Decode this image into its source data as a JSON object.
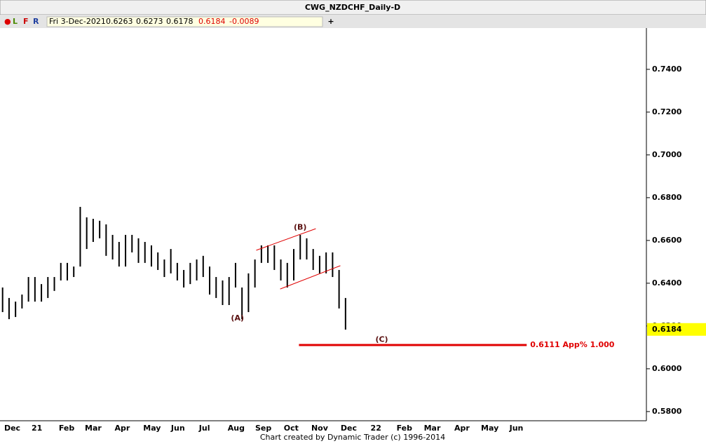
{
  "header": {
    "title": "CWG_NZDCHF_Daily-D",
    "dot": "●",
    "buttons": [
      "L",
      "F",
      "R"
    ],
    "info": {
      "date": "Fri 3-Dec-2021",
      "open": 0.6263,
      "high": 0.6273,
      "low": 0.6178,
      "close": 0.6184,
      "change": -0.0089
    },
    "plus": "+"
  },
  "chart_data": {
    "type": "range-bar",
    "color": "#000000",
    "x": [
      0,
      1,
      2,
      3,
      4,
      5,
      6,
      7,
      8,
      9,
      10,
      11,
      12,
      13,
      14,
      15,
      16,
      17,
      18,
      19,
      20,
      21,
      22,
      23,
      24,
      25,
      26,
      27,
      28,
      29,
      30,
      31,
      32,
      33,
      34,
      35,
      36,
      37,
      38,
      39,
      40,
      41,
      42,
      43,
      44,
      45,
      46,
      47,
      48,
      49,
      50,
      51,
      52,
      53
    ],
    "high": [
      0.638,
      0.6331,
      0.6314,
      0.6347,
      0.6429,
      0.6429,
      0.6396,
      0.6429,
      0.6429,
      0.6495,
      0.6495,
      0.6478,
      0.6757,
      0.6708,
      0.6701,
      0.6692,
      0.6675,
      0.6626,
      0.6593,
      0.6626,
      0.6626,
      0.661,
      0.6593,
      0.6577,
      0.6544,
      0.6511,
      0.656,
      0.6495,
      0.6462,
      0.6495,
      0.6511,
      0.6528,
      0.6478,
      0.6429,
      0.6413,
      0.6429,
      0.6495,
      0.638,
      0.6446,
      0.6511,
      0.6577,
      0.6577,
      0.6577,
      0.6511,
      0.6495,
      0.656,
      0.6626,
      0.661,
      0.656,
      0.6528,
      0.6544,
      0.6544,
      0.6462,
      0.6331
    ],
    "low": [
      0.6265,
      0.6232,
      0.6242,
      0.6282,
      0.6314,
      0.6314,
      0.6314,
      0.6331,
      0.6364,
      0.6413,
      0.6413,
      0.6429,
      0.6478,
      0.656,
      0.6593,
      0.661,
      0.6528,
      0.6511,
      0.6478,
      0.6478,
      0.6544,
      0.6495,
      0.6495,
      0.6478,
      0.6462,
      0.6429,
      0.6446,
      0.6413,
      0.638,
      0.6396,
      0.6413,
      0.6429,
      0.6347,
      0.6331,
      0.6298,
      0.6298,
      0.638,
      0.6232,
      0.6265,
      0.638,
      0.6495,
      0.6495,
      0.6462,
      0.6413,
      0.638,
      0.6413,
      0.6511,
      0.6511,
      0.6462,
      0.6446,
      0.6446,
      0.6429,
      0.6282,
      0.6183
    ],
    "xlim": [
      -0.4,
      99.5
    ],
    "ylim": [
      0.5757,
      0.7593
    ],
    "xticks": [
      {
        "value": 1.5,
        "label": "Dec"
      },
      {
        "value": 5.3,
        "label": "21"
      },
      {
        "value": 9.9,
        "label": "Feb"
      },
      {
        "value": 14,
        "label": "Mar"
      },
      {
        "value": 18.5,
        "label": "Apr"
      },
      {
        "value": 23.1,
        "label": "May"
      },
      {
        "value": 27.1,
        "label": "Jun"
      },
      {
        "value": 31.2,
        "label": "Jul"
      },
      {
        "value": 36.1,
        "label": "Aug"
      },
      {
        "value": 40.3,
        "label": "Sep"
      },
      {
        "value": 44.6,
        "label": "Oct"
      },
      {
        "value": 49,
        "label": "Nov"
      },
      {
        "value": 53.5,
        "label": "Dec"
      },
      {
        "value": 57.7,
        "label": "22"
      },
      {
        "value": 62.1,
        "label": "Feb"
      },
      {
        "value": 66.4,
        "label": "Mar"
      },
      {
        "value": 71,
        "label": "Apr"
      },
      {
        "value": 75.3,
        "label": "May"
      },
      {
        "value": 79.4,
        "label": "Jun"
      }
    ],
    "yticks": [
      {
        "value": 0.58,
        "label": "0.5800"
      },
      {
        "value": 0.6,
        "label": "0.6000"
      },
      {
        "value": 0.62,
        "label": "0.6200"
      },
      {
        "value": 0.64,
        "label": "0.6400"
      },
      {
        "value": 0.66,
        "label": "0.6600"
      },
      {
        "value": 0.68,
        "label": "0.6800"
      },
      {
        "value": 0.7,
        "label": "0.7000"
      },
      {
        "value": 0.72,
        "label": "0.7200"
      },
      {
        "value": 0.74,
        "label": "0.7400"
      }
    ],
    "last_price": 0.6184,
    "annotations": [
      {
        "text": "(A)",
        "x": 36.3,
        "y": 0.6235
      },
      {
        "text": "(B)",
        "x": 46,
        "y": 0.666
      },
      {
        "text": "(C)",
        "x": 58.6,
        "y": 0.6135
      }
    ],
    "channel": [
      {
        "x": [
          39.2,
          48.4
        ],
        "y": [
          0.6554,
          0.6655
        ]
      },
      {
        "x": [
          42.9,
          52.2
        ],
        "y": [
          0.6373,
          0.6482
        ]
      }
    ],
    "projection": {
      "value": 0.6111,
      "label": "0.6111 App% 1.000",
      "x": [
        45.8,
        81.0
      ],
      "color": "#e00000"
    }
  },
  "footer": "Chart created by Dynamic Trader  (c) 1996-2014"
}
